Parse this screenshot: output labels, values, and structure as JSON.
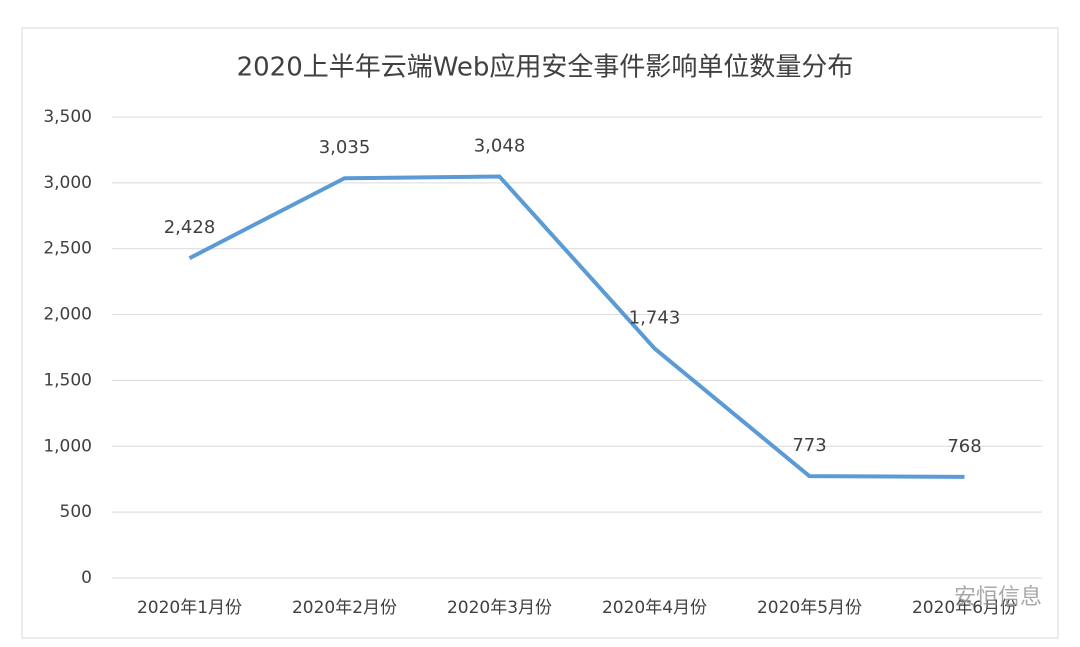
{
  "chart_data": {
    "type": "line",
    "title": "2020上半年云端Web应用安全事件影响单位数量分布",
    "categories": [
      "2020年1月份",
      "2020年2月份",
      "2020年3月份",
      "2020年4月份",
      "2020年5月份",
      "2020年6月份"
    ],
    "series": [
      {
        "name": "影响单位数量",
        "color": "#5b9bd5",
        "values": [
          2428,
          3035,
          3048,
          1743,
          773,
          768
        ],
        "value_labels": [
          "2,428",
          "3,035",
          "3,048",
          "1,743",
          "773",
          "768"
        ]
      }
    ],
    "ylim": [
      0,
      3500
    ],
    "yticks": [
      0,
      500,
      {
        "value": 1000,
        "label": "1,000"
      },
      {
        "value": 1500,
        "label": "1,500"
      },
      {
        "value": 2000,
        "label": "2,000"
      },
      {
        "value": 2500,
        "label": "2,500"
      },
      {
        "value": 3000,
        "label": "3,000"
      },
      {
        "value": 3500,
        "label": "3,500"
      }
    ],
    "grid": true
  },
  "watermark": "安恒信息"
}
